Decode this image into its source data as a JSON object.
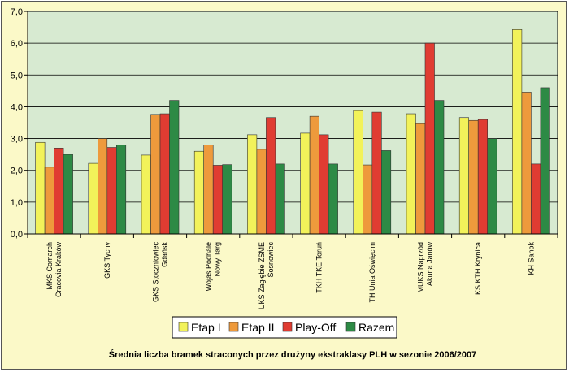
{
  "chart_data": {
    "type": "bar",
    "title": "Średnia liczba bramek straconych przez drużyny ekstraklasy PLH w sezonie 2006/2007",
    "categories": [
      [
        "MKS Comarch",
        "Cracovia Kraków"
      ],
      [
        "GKS Tychy"
      ],
      [
        "GKS Stoczniowiec",
        "Gdańsk"
      ],
      [
        "Wojas Podhale",
        "Nowy Targ"
      ],
      [
        "UKS Zagłębie ZSME",
        "Sosnowiec"
      ],
      [
        "TKH TKE Toruń"
      ],
      [
        "TH Unia Oświęcim"
      ],
      [
        "MUKS Naprzód",
        "Akuna Janów"
      ],
      [
        "KS KTH Krynica"
      ],
      [
        "KH Sanok"
      ]
    ],
    "series": [
      {
        "name": "Etap I",
        "color": "#f2f25a",
        "values": [
          2.88,
          2.22,
          2.48,
          2.6,
          3.12,
          3.17,
          3.88,
          3.78,
          3.66,
          6.43
        ]
      },
      {
        "name": "Etap II",
        "color": "#ee9a3c",
        "values": [
          2.1,
          3.0,
          3.76,
          2.8,
          2.66,
          3.7,
          2.17,
          3.47,
          3.57,
          4.46
        ]
      },
      {
        "name": "Play-Off",
        "color": "#e03c32",
        "values": [
          2.7,
          2.72,
          3.78,
          2.16,
          3.66,
          3.12,
          3.83,
          6.0,
          3.6,
          2.2
        ]
      },
      {
        "name": "Razem",
        "color": "#2d8a45",
        "values": [
          2.5,
          2.8,
          4.2,
          2.18,
          2.2,
          2.2,
          2.62,
          4.2,
          3.0,
          4.6
        ]
      }
    ],
    "yticks": [
      "0,0",
      "1,0",
      "2,0",
      "3,0",
      "4,0",
      "5,0",
      "6,0",
      "7,0"
    ],
    "ylim": [
      0,
      7
    ],
    "grid": true,
    "legend_position": "bottom-center",
    "colors": {
      "plot_background": "#d7ead1",
      "frame_background": "#fbf9c8",
      "gridline": "#000000"
    }
  }
}
